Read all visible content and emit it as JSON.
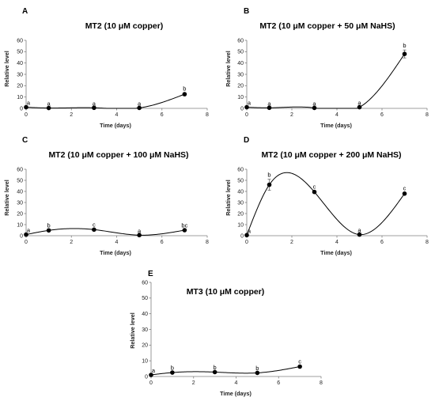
{
  "chart_data": [
    {
      "type": "line",
      "panel_label": "A",
      "title": "MT2 (10 μM copper)",
      "xlabel": "Time (days)",
      "ylabel": "Relative level",
      "xlim": [
        0,
        8
      ],
      "ylim": [
        0,
        60
      ],
      "x_ticks": [
        0,
        2,
        4,
        6,
        8
      ],
      "y_ticks": [
        0,
        10,
        20,
        30,
        40,
        50,
        60
      ],
      "x": [
        0,
        1,
        3,
        5,
        7
      ],
      "values": [
        1.0,
        0.3,
        0.5,
        0.4,
        12.5
      ],
      "errors": [
        0,
        0,
        0,
        0,
        1.0
      ],
      "significance": [
        "a",
        "a",
        "a",
        "a",
        "b"
      ]
    },
    {
      "type": "line",
      "panel_label": "B",
      "title": "MT2 (10 μM copper + 50 μM NaHS)",
      "xlabel": "Time (days)",
      "ylabel": "Relative level",
      "xlim": [
        0,
        8
      ],
      "ylim": [
        0,
        60
      ],
      "x_ticks": [
        0,
        2,
        4,
        6,
        8
      ],
      "y_ticks": [
        0,
        10,
        20,
        30,
        40,
        50,
        60
      ],
      "x": [
        0,
        1,
        3,
        5,
        7
      ],
      "values": [
        1.0,
        0.5,
        0.4,
        1.0,
        48.0
      ],
      "errors": [
        0,
        0,
        0,
        0,
        3.5
      ],
      "significance": [
        "a",
        "a",
        "a",
        "a",
        "b"
      ]
    },
    {
      "type": "line",
      "panel_label": "C",
      "title": "MT2 (10 μM copper + 100 μM NaHS)",
      "xlabel": "Time (days)",
      "ylabel": "Relative level",
      "xlim": [
        0,
        8
      ],
      "ylim": [
        0,
        60
      ],
      "x_ticks": [
        0,
        2,
        4,
        6,
        8
      ],
      "y_ticks": [
        0,
        10,
        20,
        30,
        40,
        50,
        60
      ],
      "x": [
        0,
        1,
        3,
        5,
        7
      ],
      "values": [
        1.0,
        4.8,
        5.5,
        0.5,
        5.0
      ],
      "errors": [
        0,
        0.5,
        0.5,
        0,
        0.5
      ],
      "significance": [
        "a",
        "b",
        "c",
        "a",
        "bc"
      ]
    },
    {
      "type": "line",
      "panel_label": "D",
      "title": "MT2 (10 μM copper + 200 μM NaHS)",
      "xlabel": "Time (days)",
      "ylabel": "Relative level",
      "xlim": [
        0,
        8
      ],
      "ylim": [
        0,
        60
      ],
      "x_ticks": [
        0,
        2,
        4,
        6,
        8
      ],
      "y_ticks": [
        0,
        10,
        20,
        30,
        40,
        50,
        60
      ],
      "x": [
        0,
        1,
        3,
        5,
        7
      ],
      "values": [
        0.5,
        46.0,
        39.5,
        1.0,
        38.0
      ],
      "errors": [
        0,
        5.0,
        1.0,
        0,
        1.0
      ],
      "significance": [
        "a",
        "b",
        "c",
        "a",
        "c"
      ]
    },
    {
      "type": "line",
      "panel_label": "E",
      "title": "MT3 (10 μM copper)",
      "xlabel": "Time (days)",
      "ylabel": "Relative level",
      "xlim": [
        0,
        8
      ],
      "ylim": [
        0,
        60
      ],
      "x_ticks": [
        0,
        2,
        4,
        6,
        8
      ],
      "y_ticks": [
        0,
        10,
        20,
        30,
        40,
        50,
        60
      ],
      "x": [
        0,
        1,
        3,
        5,
        7
      ],
      "values": [
        1.0,
        2.5,
        2.8,
        2.3,
        6.3
      ],
      "errors": [
        0,
        0.3,
        0.3,
        0.3,
        0.5
      ],
      "significance": [
        "a",
        "b",
        "b",
        "b",
        "c"
      ]
    }
  ]
}
